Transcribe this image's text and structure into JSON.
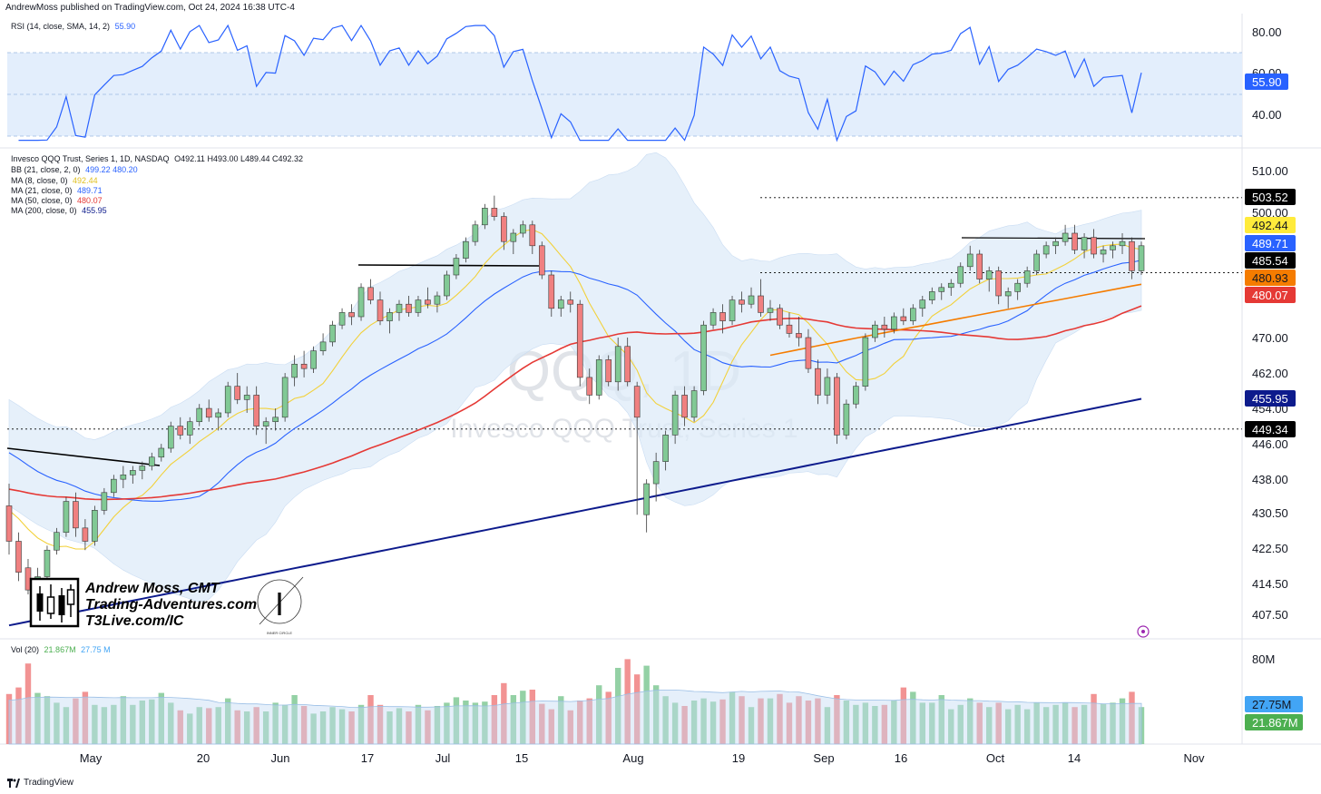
{
  "header": {
    "text": "AndrewMoss published on TradingView.com, Oct 24, 2024 16:38 UTC-4"
  },
  "rsi_legend": {
    "label": "RSI (14, close, SMA, 14, 2)",
    "value": "55.90"
  },
  "price_legend": {
    "title": "Invesco QQQ Trust, Series 1, 1D, NASDAQ",
    "ohlc": "O492.11  H493.00  L489.44  C492.32",
    "bb_label": "BB (21, close, 2, 0)",
    "bb_values": "499.22  480.20",
    "ma8_label": "MA (8, close, 0)",
    "ma8_value": "492.44",
    "ma21_label": "MA (21, close, 0)",
    "ma21_value": "489.71",
    "ma50_label": "MA (50, close, 0)",
    "ma50_value": "480.07",
    "ma200_label": "MA (200, close, 0)",
    "ma200_value": "455.95"
  },
  "vol_legend": {
    "label": "Vol (20)",
    "v1": "21.867M",
    "v2": "27.75 M"
  },
  "watermark": {
    "symbol": "QQQ, 1D",
    "name": "Invesco QQQ Trust, Series 1"
  },
  "branding": {
    "line1": "Andrew Moss, CMT",
    "line2": "Trading-Adventures.com",
    "line3": "T3Live.com/IC",
    "seal_text": "INNER CIRCLE",
    "seal_letter": "I"
  },
  "footer": {
    "text": "TradingView"
  },
  "colors": {
    "up": "#81c995",
    "down": "#f08080",
    "vol_up": "#81c995",
    "vol_down": "#f08080",
    "ma8": "#f2d13a",
    "ma21": "#2962ff",
    "ma50": "#e53935",
    "ma200": "#0d1b8c",
    "bb_fill": "#dbe9f8",
    "rsi": "#2962ff",
    "rsi_band": "#e3eefc",
    "ema_orange": "#f57c00"
  },
  "chart_data": {
    "type": "candlestick",
    "rsi_axis": {
      "ticks": [
        "80.00",
        "60.00",
        "40.00"
      ],
      "current": "55.90"
    },
    "price_axis": {
      "ticks": [
        "510.00",
        "500.00",
        "470.00",
        "462.00",
        "454.00",
        "446.00",
        "438.00",
        "430.50",
        "422.50",
        "414.50",
        "407.50"
      ]
    },
    "price_badges": [
      {
        "label": "503.52",
        "bg": "#000000",
        "fg": "#ffffff",
        "price": 503.52
      },
      {
        "label": "492.44",
        "bg": "#ffeb3b",
        "fg": "#131722",
        "price": 492.44
      },
      {
        "label": "489.71",
        "bg": "#2962ff",
        "fg": "#ffffff",
        "price": 489.71
      },
      {
        "label": "485.54",
        "bg": "#000000",
        "fg": "#ffffff",
        "price": 485.54
      },
      {
        "label": "480.93",
        "bg": "#f57c00",
        "fg": "#131722",
        "price": 480.93
      },
      {
        "label": "480.07",
        "bg": "#e53935",
        "fg": "#ffffff",
        "price": 480.07
      },
      {
        "label": "455.95",
        "bg": "#0d1b8c",
        "fg": "#ffffff",
        "price": 455.95
      },
      {
        "label": "449.34",
        "bg": "#000000",
        "fg": "#ffffff",
        "price": 449.34
      }
    ],
    "vol_axis": {
      "ticks": [
        "80M"
      ],
      "badges": [
        {
          "label": "27.75M",
          "bg": "#42a5f5",
          "fg": "#131722"
        },
        {
          "label": "21.867M",
          "bg": "#4caf50",
          "fg": "#ffffff"
        }
      ]
    },
    "x_ticks": [
      "May",
      "20",
      "Jun",
      "17",
      "Jul",
      "15",
      "Aug",
      "19",
      "Sep",
      "16",
      "Oct",
      "14",
      "Nov"
    ],
    "candles": [
      [
        432,
        437,
        421,
        424
      ],
      [
        424,
        426,
        415,
        417
      ],
      [
        418,
        420,
        412,
        413
      ],
      [
        413,
        418,
        410,
        416
      ],
      [
        416,
        423,
        415,
        422
      ],
      [
        422,
        427,
        421,
        426
      ],
      [
        426,
        434,
        425,
        433
      ],
      [
        433,
        435,
        425,
        427
      ],
      [
        427,
        429,
        422,
        424
      ],
      [
        424,
        432,
        423,
        431
      ],
      [
        431,
        436,
        430,
        435
      ],
      [
        435,
        439,
        434,
        438
      ],
      [
        438,
        441,
        436,
        439
      ],
      [
        439,
        441,
        437,
        440
      ],
      [
        440,
        442,
        438,
        441
      ],
      [
        441,
        444,
        440,
        443
      ],
      [
        443,
        446,
        442,
        445
      ],
      [
        445,
        451,
        444,
        450
      ],
      [
        450,
        452,
        447,
        448
      ],
      [
        448,
        452,
        446,
        451
      ],
      [
        451,
        455,
        450,
        454
      ],
      [
        454,
        456,
        451,
        452
      ],
      [
        452,
        454,
        449,
        453
      ],
      [
        453,
        460,
        452,
        459
      ],
      [
        459,
        462,
        455,
        456
      ],
      [
        456,
        459,
        453,
        457
      ],
      [
        457,
        459,
        448,
        450
      ],
      [
        450,
        452,
        446,
        451
      ],
      [
        451,
        454,
        449,
        452
      ],
      [
        452,
        462,
        451,
        461
      ],
      [
        461,
        466,
        459,
        464
      ],
      [
        464,
        467,
        461,
        463
      ],
      [
        463,
        468,
        462,
        467
      ],
      [
        467,
        471,
        466,
        469
      ],
      [
        469,
        474,
        468,
        473
      ],
      [
        473,
        477,
        472,
        476
      ],
      [
        476,
        478,
        473,
        475
      ],
      [
        475,
        483,
        474,
        482
      ],
      [
        482,
        484,
        478,
        479
      ],
      [
        479,
        481,
        473,
        474
      ],
      [
        474,
        477,
        471,
        476
      ],
      [
        476,
        479,
        474,
        478
      ],
      [
        478,
        480,
        475,
        476
      ],
      [
        476,
        480,
        475,
        479
      ],
      [
        479,
        482,
        477,
        478
      ],
      [
        478,
        481,
        476,
        480
      ],
      [
        480,
        486,
        479,
        485
      ],
      [
        485,
        490,
        484,
        489
      ],
      [
        489,
        494,
        488,
        493
      ],
      [
        493,
        498,
        492,
        497
      ],
      [
        497,
        502,
        496,
        501
      ],
      [
        501,
        504,
        498,
        499
      ],
      [
        499,
        500,
        491,
        493
      ],
      [
        493,
        496,
        490,
        495
      ],
      [
        495,
        498,
        494,
        497
      ],
      [
        497,
        498,
        490,
        492
      ],
      [
        492,
        493,
        484,
        485
      ],
      [
        485,
        486,
        475,
        477
      ],
      [
        477,
        480,
        475,
        479
      ],
      [
        479,
        481,
        476,
        478
      ],
      [
        478,
        479,
        459,
        461
      ],
      [
        461,
        463,
        455,
        457
      ],
      [
        457,
        466,
        456,
        465
      ],
      [
        465,
        466,
        459,
        460
      ],
      [
        460,
        470,
        458,
        468
      ],
      [
        468,
        470,
        459,
        460
      ],
      [
        459,
        460,
        430,
        452
      ],
      [
        430,
        438,
        426,
        437
      ],
      [
        437,
        444,
        433,
        442
      ],
      [
        442,
        449,
        440,
        448
      ],
      [
        448,
        458,
        446,
        457
      ],
      [
        457,
        459,
        450,
        452
      ],
      [
        452,
        459,
        451,
        458
      ],
      [
        458,
        474,
        457,
        473
      ],
      [
        473,
        477,
        472,
        476
      ],
      [
        476,
        478,
        471,
        474
      ],
      [
        474,
        480,
        473,
        479
      ],
      [
        479,
        481,
        476,
        478
      ],
      [
        478,
        482,
        477,
        480
      ],
      [
        480,
        484,
        475,
        476
      ],
      [
        476,
        479,
        474,
        477
      ],
      [
        477,
        478,
        472,
        473
      ],
      [
        473,
        476,
        470,
        471
      ],
      [
        471,
        475,
        468,
        470
      ],
      [
        470,
        472,
        462,
        463
      ],
      [
        463,
        465,
        455,
        457
      ],
      [
        457,
        463,
        455,
        461
      ],
      [
        461,
        462,
        446,
        448
      ],
      [
        448,
        456,
        447,
        455
      ],
      [
        455,
        460,
        454,
        459
      ],
      [
        459,
        471,
        458,
        470
      ],
      [
        470,
        474,
        469,
        473
      ],
      [
        473,
        475,
        470,
        472
      ],
      [
        472,
        476,
        471,
        475
      ],
      [
        475,
        477,
        473,
        474
      ],
      [
        474,
        478,
        473,
        477
      ],
      [
        477,
        480,
        475,
        479
      ],
      [
        479,
        482,
        478,
        481
      ],
      [
        481,
        483,
        479,
        482
      ],
      [
        482,
        484,
        480,
        483
      ],
      [
        483,
        488,
        482,
        487
      ],
      [
        487,
        492,
        486,
        490
      ],
      [
        490,
        491,
        483,
        484
      ],
      [
        484,
        487,
        481,
        486
      ],
      [
        486,
        487,
        478,
        480
      ],
      [
        480,
        482,
        477,
        481
      ],
      [
        481,
        484,
        479,
        483
      ],
      [
        483,
        487,
        482,
        486
      ],
      [
        486,
        491,
        485,
        490
      ],
      [
        490,
        493,
        489,
        492
      ],
      [
        492,
        494,
        490,
        493
      ],
      [
        493,
        497,
        492,
        495
      ],
      [
        495,
        497,
        490,
        491
      ],
      [
        491,
        495,
        489,
        494
      ],
      [
        494,
        496,
        489,
        490
      ],
      [
        490,
        492,
        488,
        491
      ],
      [
        491,
        493,
        489,
        492
      ],
      [
        492,
        495,
        490,
        493
      ],
      [
        493,
        494,
        484,
        486
      ],
      [
        486,
        493,
        485,
        492
      ]
    ],
    "volume": [
      46,
      52,
      74,
      47,
      44,
      38,
      34,
      42,
      48,
      36,
      34,
      36,
      44,
      36,
      40,
      41,
      47,
      38,
      31,
      28,
      34,
      33,
      34,
      42,
      31,
      30,
      34,
      30,
      38,
      36,
      45,
      35,
      28,
      30,
      34,
      32,
      30,
      36,
      45,
      36,
      30,
      33,
      30,
      36,
      31,
      35,
      38,
      43,
      40,
      38,
      39,
      45,
      56,
      45,
      49,
      50,
      37,
      32,
      44,
      31,
      40,
      42,
      54,
      48,
      70,
      78,
      64,
      72,
      54,
      44,
      38,
      35,
      40,
      42,
      39,
      41,
      48,
      44,
      34,
      42,
      42,
      46,
      38,
      44,
      40,
      42,
      34,
      45,
      40,
      36,
      38,
      35,
      36,
      40,
      52,
      48,
      38,
      38,
      45,
      32,
      36,
      42,
      38,
      34,
      38,
      32,
      36,
      32,
      38,
      34,
      36,
      38,
      34,
      36,
      46,
      37,
      38,
      42,
      48,
      34
    ],
    "volume_dir": "follows candle color"
  }
}
